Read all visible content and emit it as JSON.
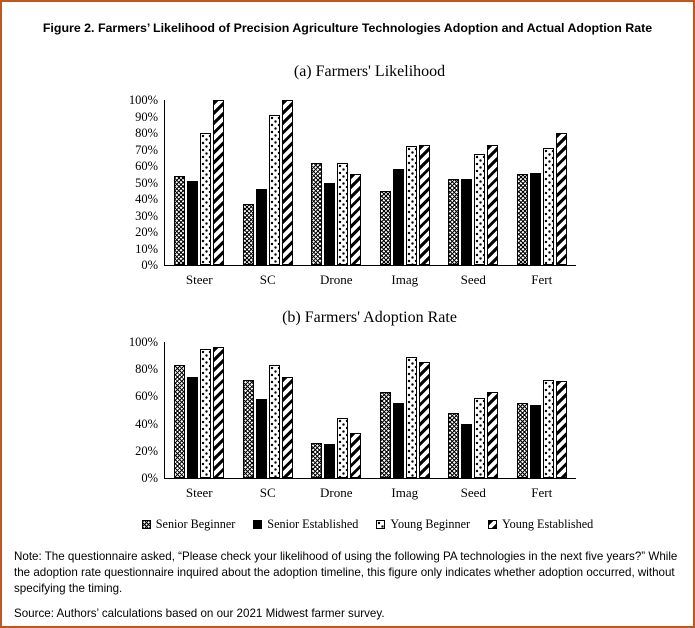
{
  "figure": {
    "title": "Figure 2. Farmers’ Likelihood of Precision Agriculture Technologies Adoption and Actual Adoption Rate",
    "border_color": "#C0571D"
  },
  "legend": {
    "items": [
      {
        "label": "Senior Beginner",
        "pattern": "crosshatch"
      },
      {
        "label": "Senior Established",
        "pattern": "solid-black"
      },
      {
        "label": "Young Beginner",
        "pattern": "dots"
      },
      {
        "label": "Young Established",
        "pattern": "diagonal-stripes"
      }
    ]
  },
  "notes": {
    "note": "Note: The questionnaire asked, “Please check your likelihood of using the following PA technologies in the next five years?” While the adoption rate questionnaire inquired about the adoption timeline, this figure only indicates whether adoption occurred, without specifying the timing.",
    "source": "Source: Authors’ calculations based on our 2021 Midwest farmer survey."
  },
  "chart_data": [
    {
      "type": "bar",
      "title": "(a) Farmers' Likelihood",
      "categories": [
        "Steer",
        "SC",
        "Drone",
        "Imag",
        "Seed",
        "Fert"
      ],
      "series": [
        {
          "name": "Senior Beginner",
          "pattern": "crosshatch",
          "values": [
            54,
            37,
            62,
            45,
            52,
            55
          ]
        },
        {
          "name": "Senior Established",
          "pattern": "solid-black",
          "values": [
            51,
            46,
            50,
            58,
            52,
            56
          ]
        },
        {
          "name": "Young Beginner",
          "pattern": "dots",
          "values": [
            80,
            91,
            62,
            72,
            67,
            71
          ]
        },
        {
          "name": "Young Established",
          "pattern": "diagonal-stripes",
          "values": [
            100,
            100,
            55,
            73,
            73,
            80
          ]
        }
      ],
      "xlabel": "",
      "ylabel": "",
      "ylim": [
        0,
        100
      ],
      "ytick_step": 10,
      "yunit": "%",
      "grid": false,
      "legend_position": "bottom-shared"
    },
    {
      "type": "bar",
      "title": "(b) Farmers' Adoption Rate",
      "categories": [
        "Steer",
        "SC",
        "Drone",
        "Imag",
        "Seed",
        "Fert"
      ],
      "series": [
        {
          "name": "Senior Beginner",
          "pattern": "crosshatch",
          "values": [
            83,
            72,
            26,
            63,
            48,
            55
          ]
        },
        {
          "name": "Senior Established",
          "pattern": "solid-black",
          "values": [
            74,
            58,
            25,
            55,
            40,
            54
          ]
        },
        {
          "name": "Young Beginner",
          "pattern": "dots",
          "values": [
            95,
            83,
            44,
            89,
            59,
            72
          ]
        },
        {
          "name": "Young Established",
          "pattern": "diagonal-stripes",
          "values": [
            96,
            74,
            33,
            85,
            63,
            71
          ]
        }
      ],
      "xlabel": "",
      "ylabel": "",
      "ylim": [
        0,
        100
      ],
      "ytick_step": 20,
      "yunit": "%",
      "grid": false,
      "legend_position": "bottom-shared"
    }
  ]
}
